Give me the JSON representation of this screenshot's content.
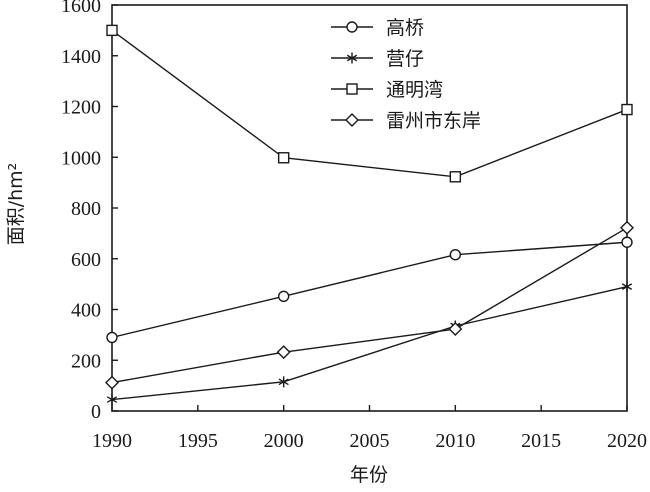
{
  "chart_data": {
    "type": "line",
    "title": "",
    "xlabel": "年份",
    "ylabel": "面积/hm²",
    "xlim": [
      1990,
      2020
    ],
    "ylim": [
      0,
      1600
    ],
    "xticks": [
      1990,
      1995,
      2000,
      2005,
      2010,
      2015,
      2020
    ],
    "yticks": [
      0,
      200,
      400,
      600,
      800,
      1000,
      1200,
      1400,
      1600
    ],
    "grid": false,
    "legend_position": "top-center",
    "series": [
      {
        "name": "高桥",
        "marker": "circle",
        "x": [
          1990,
          2000,
          2010,
          2020
        ],
        "y": [
          290,
          452,
          616,
          665
        ]
      },
      {
        "name": "营仔",
        "marker": "star",
        "x": [
          1990,
          2000,
          2010,
          2020
        ],
        "y": [
          45,
          115,
          335,
          490
        ]
      },
      {
        "name": "通明湾",
        "marker": "square",
        "x": [
          1990,
          2000,
          2010,
          2020
        ],
        "y": [
          1500,
          998,
          923,
          1188
        ]
      },
      {
        "name": "雷州市东岸",
        "marker": "diamond",
        "x": [
          1990,
          2000,
          2010,
          2020
        ],
        "y": [
          112,
          232,
          323,
          722
        ]
      }
    ]
  }
}
